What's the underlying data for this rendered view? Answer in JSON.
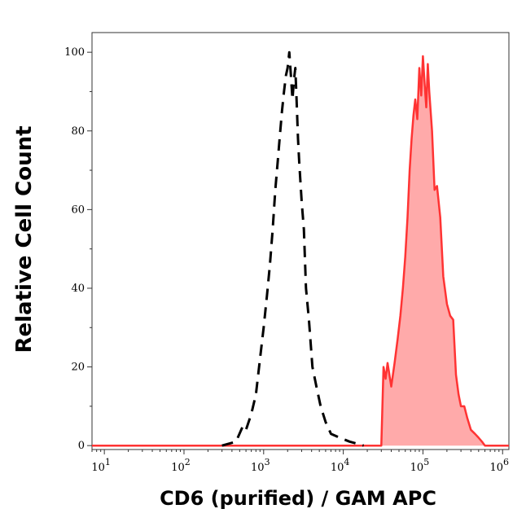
{
  "chart_data": {
    "type": "area",
    "title": "",
    "xlabel": "CD6 (purified) / GAM APC",
    "ylabel": "Relative Cell Count",
    "x_scale": "log",
    "xlim": [
      7,
      1200000
    ],
    "ylim": [
      -1,
      105
    ],
    "grid": false,
    "x_ticks": [
      {
        "value": 10,
        "base": "10",
        "exp": "1"
      },
      {
        "value": 100,
        "base": "10",
        "exp": "2"
      },
      {
        "value": 1000,
        "base": "10",
        "exp": "3"
      },
      {
        "value": 10000,
        "base": "10",
        "exp": "4"
      },
      {
        "value": 100000,
        "base": "10",
        "exp": "5"
      },
      {
        "value": 1000000,
        "base": "10",
        "exp": "6"
      }
    ],
    "y_ticks": [
      0,
      20,
      40,
      60,
      80,
      100
    ],
    "series": [
      {
        "style": "dashed",
        "color": "#000000",
        "fill": "none",
        "points": [
          [
            300,
            0
          ],
          [
            450,
            1
          ],
          [
            550,
            5
          ],
          [
            600,
            4
          ],
          [
            700,
            8
          ],
          [
            800,
            13
          ],
          [
            900,
            22
          ],
          [
            1000,
            30
          ],
          [
            1100,
            38
          ],
          [
            1200,
            46
          ],
          [
            1300,
            55
          ],
          [
            1400,
            65
          ],
          [
            1500,
            72
          ],
          [
            1600,
            79
          ],
          [
            1700,
            85
          ],
          [
            1800,
            90
          ],
          [
            1900,
            94
          ],
          [
            2000,
            96
          ],
          [
            2100,
            100
          ],
          [
            2200,
            94
          ],
          [
            2300,
            88
          ],
          [
            2400,
            93
          ],
          [
            2500,
            96
          ],
          [
            2600,
            87
          ],
          [
            2700,
            78
          ],
          [
            2800,
            72
          ],
          [
            3000,
            62
          ],
          [
            3200,
            55
          ],
          [
            3400,
            40
          ],
          [
            3700,
            32
          ],
          [
            4100,
            20
          ],
          [
            4600,
            15
          ],
          [
            5200,
            10
          ],
          [
            6000,
            6
          ],
          [
            7000,
            3
          ],
          [
            9000,
            2
          ],
          [
            12000,
            1
          ],
          [
            18000,
            0
          ]
        ]
      },
      {
        "style": "solid",
        "color": "#ff3333",
        "fill": "#ffaaaa",
        "points": [
          [
            7,
            0
          ],
          [
            30000,
            0
          ],
          [
            32000,
            20
          ],
          [
            34000,
            17
          ],
          [
            36000,
            21
          ],
          [
            40000,
            15
          ],
          [
            44000,
            21
          ],
          [
            48000,
            27
          ],
          [
            52000,
            33
          ],
          [
            56000,
            40
          ],
          [
            60000,
            48
          ],
          [
            64000,
            58
          ],
          [
            68000,
            70
          ],
          [
            72000,
            78
          ],
          [
            76000,
            84
          ],
          [
            80000,
            88
          ],
          [
            85000,
            83
          ],
          [
            90000,
            96
          ],
          [
            95000,
            89
          ],
          [
            100000,
            99
          ],
          [
            105000,
            92
          ],
          [
            110000,
            86
          ],
          [
            115000,
            97
          ],
          [
            120000,
            90
          ],
          [
            130000,
            80
          ],
          [
            140000,
            65
          ],
          [
            150000,
            66
          ],
          [
            165000,
            58
          ],
          [
            180000,
            43
          ],
          [
            200000,
            36
          ],
          [
            220000,
            33
          ],
          [
            240000,
            32
          ],
          [
            260000,
            18
          ],
          [
            280000,
            13
          ],
          [
            300000,
            10
          ],
          [
            330000,
            10
          ],
          [
            360000,
            7
          ],
          [
            400000,
            4
          ],
          [
            450000,
            3
          ],
          [
            500000,
            2
          ],
          [
            550000,
            1
          ],
          [
            600000,
            0
          ],
          [
            1200000,
            0
          ]
        ]
      }
    ]
  }
}
